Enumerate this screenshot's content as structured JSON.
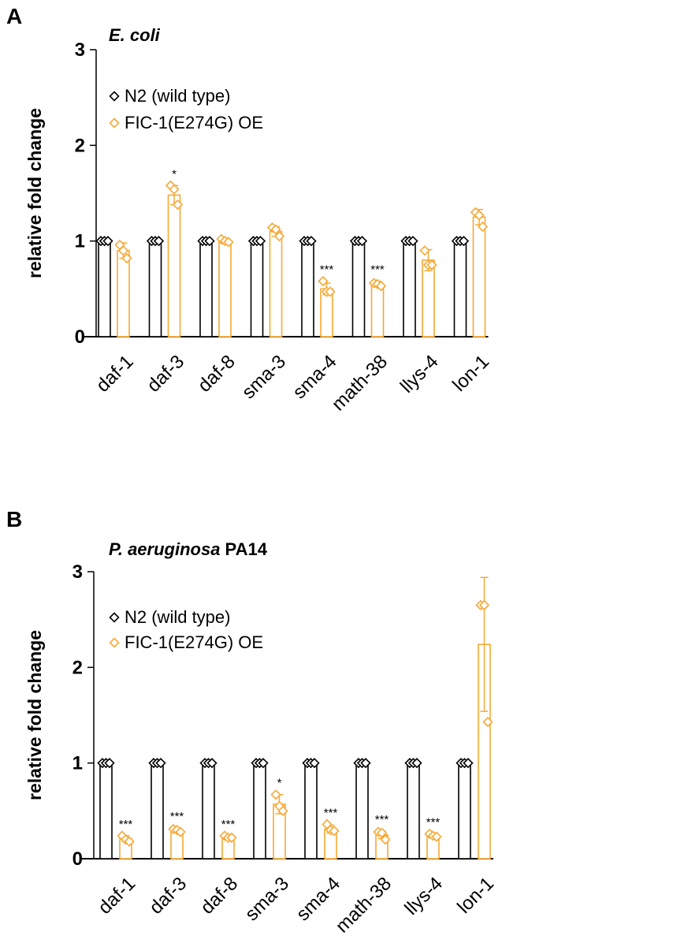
{
  "chart_data": [
    {
      "panel": "A",
      "type": "bar",
      "title": "E. coli",
      "title_italic_part": "E. coli",
      "title_rest": "",
      "ylabel": "relative fold change",
      "xlabel": "",
      "ylim": [
        0,
        3
      ],
      "yticks": [
        0,
        1,
        2,
        3
      ],
      "grid": false,
      "legend_placement": "top-left",
      "categories": [
        "daf-1",
        "daf-3",
        "daf-8",
        "sma-3",
        "sma-4",
        "math-38",
        "llys-4",
        "lon-1"
      ],
      "series": [
        {
          "name": "N2 (wild type)",
          "color": "#000000",
          "values": [
            1,
            1,
            1,
            1,
            1,
            1,
            1,
            1
          ],
          "errors": [
            0,
            0,
            0,
            0,
            0,
            0,
            0,
            0
          ],
          "points": [
            [
              1,
              1,
              1
            ],
            [
              1,
              1,
              1
            ],
            [
              1,
              1,
              1
            ],
            [
              1,
              1,
              1
            ],
            [
              1,
              1,
              1
            ],
            [
              1,
              1,
              1
            ],
            [
              1,
              1,
              1
            ],
            [
              1,
              1,
              1
            ]
          ]
        },
        {
          "name": "FIC-1(E274G) OE",
          "color": "#F7A833",
          "values": [
            0.9,
            1.48,
            1.0,
            1.1,
            0.5,
            0.55,
            0.8,
            1.25
          ],
          "errors": [
            0.08,
            0.1,
            0.03,
            0.05,
            0.06,
            0.03,
            0.11,
            0.08
          ],
          "points": [
            [
              0.96,
              0.9,
              0.82
            ],
            [
              1.58,
              1.54,
              1.38
            ],
            [
              1.02,
              1.0,
              0.99
            ],
            [
              1.14,
              1.12,
              1.05
            ],
            [
              0.58,
              0.47,
              0.47
            ],
            [
              0.56,
              0.55,
              0.53
            ],
            [
              0.9,
              0.75,
              0.75
            ],
            [
              1.3,
              1.27,
              1.15
            ]
          ]
        }
      ],
      "significance": [
        "",
        "*",
        "",
        "",
        "***",
        "***",
        "",
        ""
      ]
    },
    {
      "panel": "B",
      "type": "bar",
      "title": "P. aeruginosa PA14",
      "title_italic_part": "P. aeruginosa",
      "title_rest": " PA14",
      "ylabel": "relative fold change",
      "xlabel": "",
      "ylim": [
        0,
        3
      ],
      "yticks": [
        0,
        1,
        2,
        3
      ],
      "grid": false,
      "legend_placement": "top-left",
      "categories": [
        "daf-1",
        "daf-3",
        "daf-8",
        "sma-3",
        "sma-4",
        "math-38",
        "llys-4",
        "lon-1"
      ],
      "series": [
        {
          "name": "N2 (wild type)",
          "color": "#000000",
          "values": [
            1,
            1,
            1,
            1,
            1,
            1,
            1,
            1
          ],
          "errors": [
            0,
            0,
            0,
            0,
            0,
            0,
            0,
            0
          ],
          "points": [
            [
              1,
              1,
              1
            ],
            [
              1,
              1,
              1
            ],
            [
              1,
              1,
              1
            ],
            [
              1,
              1,
              1
            ],
            [
              1,
              1,
              1
            ],
            [
              1,
              1,
              1
            ],
            [
              1,
              1,
              1
            ],
            [
              1,
              1,
              1
            ]
          ]
        },
        {
          "name": "FIC-1(E274G) OE",
          "color": "#F7A833",
          "values": [
            0.21,
            0.3,
            0.22,
            0.57,
            0.31,
            0.25,
            0.24,
            2.24
          ],
          "errors": [
            0.03,
            0.02,
            0.02,
            0.1,
            0.04,
            0.04,
            0.02,
            0.7
          ],
          "points": [
            [
              0.24,
              0.2,
              0.18
            ],
            [
              0.31,
              0.3,
              0.28
            ],
            [
              0.24,
              0.22,
              0.22
            ],
            [
              0.67,
              0.55,
              0.5
            ],
            [
              0.36,
              0.3,
              0.29
            ],
            [
              0.28,
              0.27,
              0.2
            ],
            [
              0.26,
              0.24,
              0.23
            ],
            [
              2.65,
              2.65,
              1.43
            ]
          ]
        }
      ],
      "significance": [
        "***",
        "***",
        "***",
        "*",
        "***",
        "***",
        "***",
        ""
      ]
    }
  ]
}
